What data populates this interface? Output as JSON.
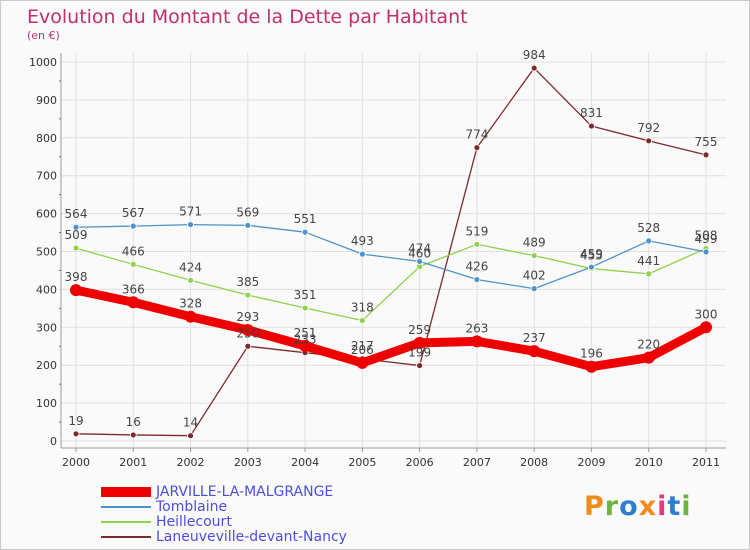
{
  "title": "Evolution du Montant de la Dette par Habitant",
  "subtitle": "(en €)",
  "logo": {
    "text": "Proxiti",
    "colors": [
      "#f08c1e",
      "#6cb43c",
      "#2e7fd0",
      "#f08c1e",
      "#e23a7c",
      "#2e7fd0",
      "#6cb43c"
    ]
  },
  "chart_data": {
    "type": "line",
    "categories": [
      "2000",
      "2001",
      "2002",
      "2003",
      "2004",
      "2005",
      "2006",
      "2007",
      "2008",
      "2009",
      "2010",
      "2011"
    ],
    "ylim": [
      0,
      1000
    ],
    "yticks": [
      "0",
      "100",
      "200",
      "300",
      "400",
      "500",
      "600",
      "700",
      "800",
      "900",
      "1000"
    ],
    "grid": true,
    "legend_position": "bottom-left",
    "series": [
      {
        "name": "JARVILLE-LA-MALGRANGE",
        "color": "#ee0000",
        "values": [
          398,
          366,
          328,
          293,
          251,
          206,
          259,
          263,
          237,
          196,
          220,
          300
        ]
      },
      {
        "name": "Tomblaine",
        "color": "#4e93c9",
        "values": [
          564,
          567,
          571,
          569,
          551,
          493,
          474,
          426,
          402,
          459,
          528,
          499
        ]
      },
      {
        "name": "Heillecourt",
        "color": "#8ed24e",
        "values": [
          509,
          466,
          424,
          385,
          351,
          318,
          460,
          519,
          489,
          455,
          441,
          508
        ]
      },
      {
        "name": "Laneuveville-devant-Nancy",
        "color": "#7d2a2a",
        "values": [
          19,
          16,
          14,
          250,
          233,
          217,
          199,
          774,
          984,
          831,
          792,
          755
        ]
      }
    ]
  }
}
